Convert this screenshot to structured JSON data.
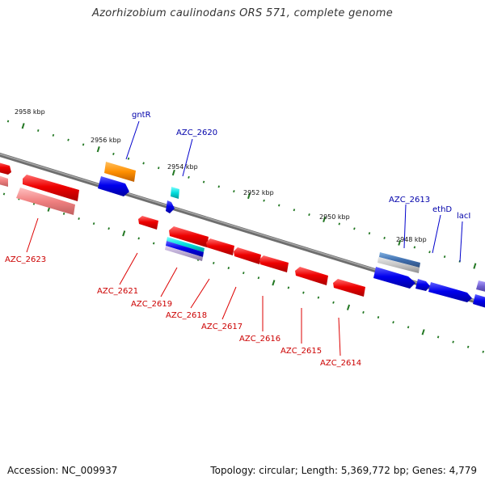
{
  "title": "Azorhizobium caulinodans ORS 571, complete genome",
  "footer": {
    "accession_label": "Accession:",
    "accession": "NC_009937",
    "topology_label": "Topology:",
    "topology": "circular",
    "length_label": "Length:",
    "length": "5,369,772 bp",
    "genes_label": "Genes:",
    "genes": "4,779"
  },
  "colors": {
    "forward_gene": "#0000dd",
    "reverse_gene": "#ee0000",
    "backbone": "#808080",
    "tick": "#227722",
    "forward_label": "#0000aa",
    "reverse_label": "#cc0000"
  },
  "kbp_ticks": [
    "2958 kbp",
    "2956 kbp",
    "2954 kbp",
    "2952 kbp",
    "2950 kbp",
    "2948 kbp"
  ],
  "forward_genes": [
    "gntR",
    "AZC_2620",
    "AZC_2613",
    "ethD",
    "lacI"
  ],
  "reverse_genes": [
    "AZC_2623",
    "AZC_2621",
    "AZC_2619",
    "AZC_2618",
    "AZC_2617",
    "AZC_2616",
    "AZC_2615",
    "AZC_2614"
  ]
}
